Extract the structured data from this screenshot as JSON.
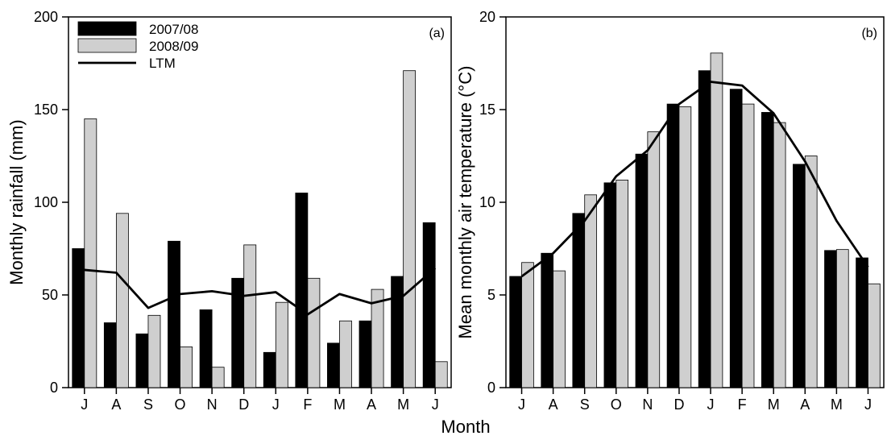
{
  "figure": {
    "xlabel": "Month"
  },
  "colors": {
    "series_2007": "#000000",
    "series_2008": "#cfcfcf",
    "ltm": "#000000"
  },
  "legend": {
    "placement": "top-left",
    "items": [
      "2007/08",
      "2008/09",
      "LTM"
    ]
  },
  "chart_data": [
    {
      "type": "bar",
      "panel_label": "(a)",
      "categories": [
        "J",
        "A",
        "S",
        "O",
        "N",
        "D",
        "J",
        "F",
        "M",
        "A",
        "M",
        "J"
      ],
      "ylabel": "Monthly rainfall (mm)",
      "ylim": [
        0,
        200
      ],
      "yticks": [
        0,
        50,
        100,
        150,
        200
      ],
      "series": [
        {
          "name": "2007/08",
          "kind": "bar",
          "values": [
            75,
            35,
            29,
            79,
            42,
            59,
            19,
            105,
            24,
            36,
            60,
            89
          ]
        },
        {
          "name": "2008/09",
          "kind": "bar",
          "values": [
            145,
            94,
            39,
            22,
            11,
            77,
            46,
            59,
            36,
            53,
            171,
            14
          ]
        },
        {
          "name": "LTM",
          "kind": "line",
          "values": [
            63.5,
            62,
            43,
            50.5,
            52,
            49.5,
            51.5,
            39.5,
            50.5,
            45.5,
            49.5,
            64.5
          ]
        }
      ]
    },
    {
      "type": "bar",
      "panel_label": "(b)",
      "categories": [
        "J",
        "A",
        "S",
        "O",
        "N",
        "D",
        "J",
        "F",
        "M",
        "A",
        "M",
        "J"
      ],
      "ylabel": "Mean monthly air temperature (°C)",
      "ylim": [
        0,
        20
      ],
      "yticks": [
        0,
        5,
        10,
        15,
        20
      ],
      "series": [
        {
          "name": "2007/08",
          "kind": "bar",
          "values": [
            6.0,
            7.25,
            9.4,
            11.05,
            12.6,
            15.3,
            17.1,
            16.1,
            14.85,
            12.05,
            7.4,
            7.0
          ]
        },
        {
          "name": "2008/09",
          "kind": "bar",
          "values": [
            6.75,
            6.3,
            10.4,
            11.2,
            13.8,
            15.15,
            18.05,
            15.3,
            14.3,
            12.5,
            7.45,
            5.6
          ]
        },
        {
          "name": "LTM",
          "kind": "line",
          "values": [
            6.0,
            7.25,
            9.0,
            11.4,
            12.8,
            15.3,
            16.5,
            16.3,
            14.8,
            12.2,
            9.0,
            6.5
          ]
        }
      ]
    }
  ]
}
